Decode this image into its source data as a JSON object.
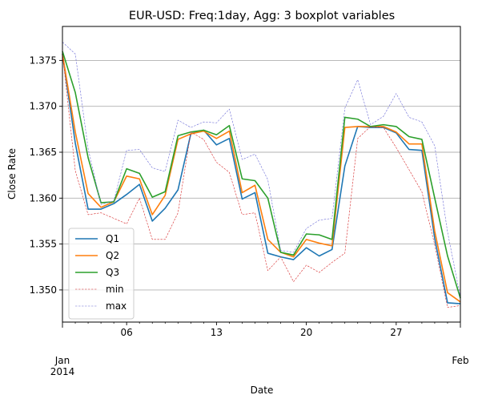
{
  "chart_data": {
    "type": "line",
    "title": "EUR-USD: Freq:1day, Agg: 3 boxplot variables",
    "xlabel": "Date",
    "ylabel": "Close Rate",
    "x_start": "2014-01-01",
    "x_end": "2014-02-01",
    "ylim": [
      1.3465,
      1.3787
    ],
    "yticks": [
      "1.350",
      "1.355",
      "1.360",
      "1.365",
      "1.370",
      "1.375"
    ],
    "xticks_major": [
      {
        "day": 1,
        "label": "Jan",
        "sublabel": "2014"
      },
      {
        "day": 32,
        "label": "Feb",
        "sublabel": ""
      }
    ],
    "xticks_minor": [
      {
        "day": 6,
        "label": "06"
      },
      {
        "day": 13,
        "label": "13"
      },
      {
        "day": 20,
        "label": "20"
      },
      {
        "day": 27,
        "label": "27"
      }
    ],
    "grid": "horizontal",
    "legend_position": "lower-left",
    "days": [
      1,
      2,
      3,
      4,
      5,
      6,
      7,
      8,
      9,
      10,
      11,
      12,
      13,
      14,
      15,
      16,
      17,
      18,
      19,
      20,
      21,
      22,
      23,
      24,
      25,
      26,
      27,
      28,
      29,
      30,
      31,
      32
    ],
    "series": [
      {
        "name": "Q1",
        "color": "#1f77b4",
        "style": "solid",
        "values": [
          1.3757,
          1.366,
          1.3588,
          1.3588,
          1.3594,
          1.3604,
          1.3615,
          1.3575,
          1.3589,
          1.3609,
          1.367,
          1.3674,
          1.3658,
          1.3665,
          1.3599,
          1.3606,
          1.354,
          1.3536,
          1.3533,
          1.3546,
          1.3537,
          1.3544,
          1.3635,
          1.3678,
          1.3677,
          1.3677,
          1.3671,
          1.3653,
          1.3652,
          1.3556,
          1.3486,
          1.3485
        ]
      },
      {
        "name": "Q2",
        "color": "#ff7f0e",
        "style": "solid",
        "values": [
          1.3757,
          1.3672,
          1.3605,
          1.359,
          1.3596,
          1.3624,
          1.3621,
          1.3582,
          1.3603,
          1.3664,
          1.367,
          1.3673,
          1.3665,
          1.3673,
          1.3606,
          1.3614,
          1.3555,
          1.3541,
          1.3536,
          1.3555,
          1.3551,
          1.3548,
          1.3677,
          1.3678,
          1.3678,
          1.3678,
          1.3672,
          1.3659,
          1.3659,
          1.3564,
          1.3497,
          1.3487
        ]
      },
      {
        "name": "Q3",
        "color": "#2ca02c",
        "style": "solid",
        "values": [
          1.376,
          1.3715,
          1.3644,
          1.3595,
          1.3596,
          1.3632,
          1.3627,
          1.3601,
          1.3607,
          1.3668,
          1.3672,
          1.3674,
          1.3669,
          1.3679,
          1.3621,
          1.3619,
          1.36,
          1.3541,
          1.3538,
          1.3561,
          1.356,
          1.3555,
          1.3688,
          1.3686,
          1.3678,
          1.368,
          1.3678,
          1.3667,
          1.3664,
          1.36,
          1.3537,
          1.3491
        ]
      },
      {
        "name": "min",
        "color": "#d62728",
        "style": "dashed",
        "values": [
          1.3758,
          1.363,
          1.3582,
          1.3584,
          1.3578,
          1.3572,
          1.36,
          1.3555,
          1.3555,
          1.3584,
          1.3672,
          1.3664,
          1.3639,
          1.3628,
          1.3582,
          1.3584,
          1.3521,
          1.3536,
          1.3509,
          1.3527,
          1.3519,
          1.353,
          1.354,
          1.3665,
          1.3678,
          1.3677,
          1.3655,
          1.3631,
          1.3607,
          1.3549,
          1.3481,
          1.3483
        ]
      },
      {
        "name": "max",
        "color": "#6b6bd6",
        "style": "dashed",
        "values": [
          1.377,
          1.3757,
          1.3654,
          1.3593,
          1.3597,
          1.3652,
          1.3653,
          1.3633,
          1.3629,
          1.3685,
          1.3677,
          1.3683,
          1.3682,
          1.3697,
          1.3642,
          1.3648,
          1.362,
          1.3543,
          1.3541,
          1.3567,
          1.3576,
          1.3578,
          1.3698,
          1.3729,
          1.368,
          1.3689,
          1.3714,
          1.3688,
          1.3683,
          1.3657,
          1.3563,
          1.3492
        ]
      }
    ]
  }
}
